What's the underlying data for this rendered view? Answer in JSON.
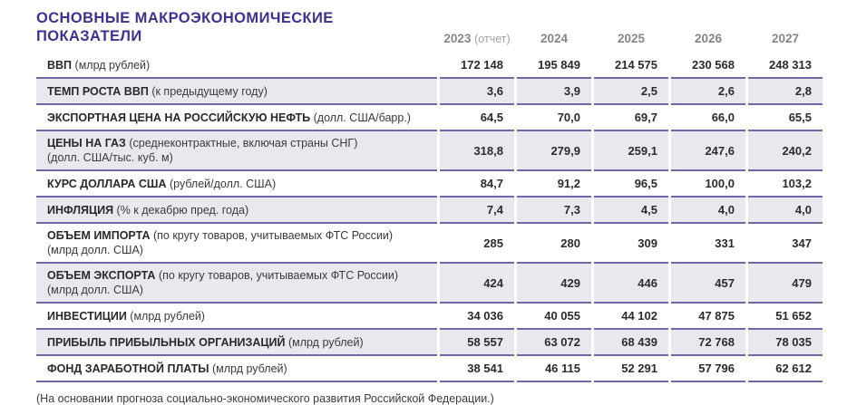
{
  "title": {
    "line1": "ОСНОВНЫЕ МАКРОЭКОНОМИЧЕСКИЕ",
    "line2": "ПОКАЗАТЕЛИ"
  },
  "columns": [
    {
      "year": "2023",
      "note": "(отчет)"
    },
    {
      "year": "2024",
      "note": ""
    },
    {
      "year": "2025",
      "note": ""
    },
    {
      "year": "2026",
      "note": ""
    },
    {
      "year": "2027",
      "note": ""
    }
  ],
  "rows": [
    {
      "name": "ВВП",
      "desc": "(млрд рублей)",
      "desc2": "",
      "values": [
        "172 148",
        "195 849",
        "214 575",
        "230 568",
        "248 313"
      ]
    },
    {
      "name": "ТЕМП РОСТА ВВП",
      "desc": "(к предыдущему году)",
      "desc2": "",
      "values": [
        "3,6",
        "3,9",
        "2,5",
        "2,6",
        "2,8"
      ]
    },
    {
      "name": "ЭКСПОРТНАЯ ЦЕНА НА РОССИЙСКУЮ НЕФТЬ",
      "desc": "(долл. США/барр.)",
      "desc2": "",
      "values": [
        "64,5",
        "70,0",
        "69,7",
        "66,0",
        "65,5"
      ]
    },
    {
      "name": "ЦЕНЫ НА ГАЗ",
      "desc": "(среднеконтрактные, включая страны СНГ)",
      "desc2": "(долл. США/тыс. куб. м)",
      "values": [
        "318,8",
        "279,9",
        "259,1",
        "247,6",
        "240,2"
      ]
    },
    {
      "name": "КУРС ДОЛЛАРА США",
      "desc": "(рублей/долл. США)",
      "desc2": "",
      "values": [
        "84,7",
        "91,2",
        "96,5",
        "100,0",
        "103,2"
      ]
    },
    {
      "name": "ИНФЛЯЦИЯ",
      "desc": "(% к декабрю пред. года)",
      "desc2": "",
      "values": [
        "7,4",
        "7,3",
        "4,5",
        "4,0",
        "4,0"
      ]
    },
    {
      "name": "ОБЪЕМ ИМПОРТА",
      "desc": "(по кругу товаров, учитываемых ФТС России)",
      "desc2": "(млрд долл. США)",
      "values": [
        "285",
        "280",
        "309",
        "331",
        "347"
      ]
    },
    {
      "name": "ОБЪЕМ ЭКСПОРТА",
      "desc": "(по кругу товаров, учитываемых ФТС России)",
      "desc2": "(млрд долл. США)",
      "values": [
        "424",
        "429",
        "446",
        "457",
        "479"
      ]
    },
    {
      "name": "ИНВЕСТИЦИИ",
      "desc": "(млрд рублей)",
      "desc2": "",
      "values": [
        "34 036",
        "40 055",
        "44 102",
        "47 875",
        "51 652"
      ]
    },
    {
      "name": "ПРИБЫЛЬ ПРИБЫЛЬНЫХ ОРГАНИЗАЦИЙ",
      "desc": "(млрд рублей)",
      "desc2": "",
      "values": [
        "58 557",
        "63 072",
        "68 439",
        "72 768",
        "78 035"
      ]
    },
    {
      "name": "ФОНД ЗАРАБОТНОЙ ПЛАТЫ",
      "desc": "(млрд рублей)",
      "desc2": "",
      "values": [
        "38 541",
        "46 115",
        "52 291",
        "57 796",
        "62 612"
      ]
    }
  ],
  "footnote": "(На основании прогноза социально-экономического развития Российской Федерации.)",
  "colors": {
    "title_accent": "#3F3193",
    "row_separator": "#7465A8",
    "alt_row_bg": "#E9E8EE",
    "year_header_gray": "#858589"
  }
}
